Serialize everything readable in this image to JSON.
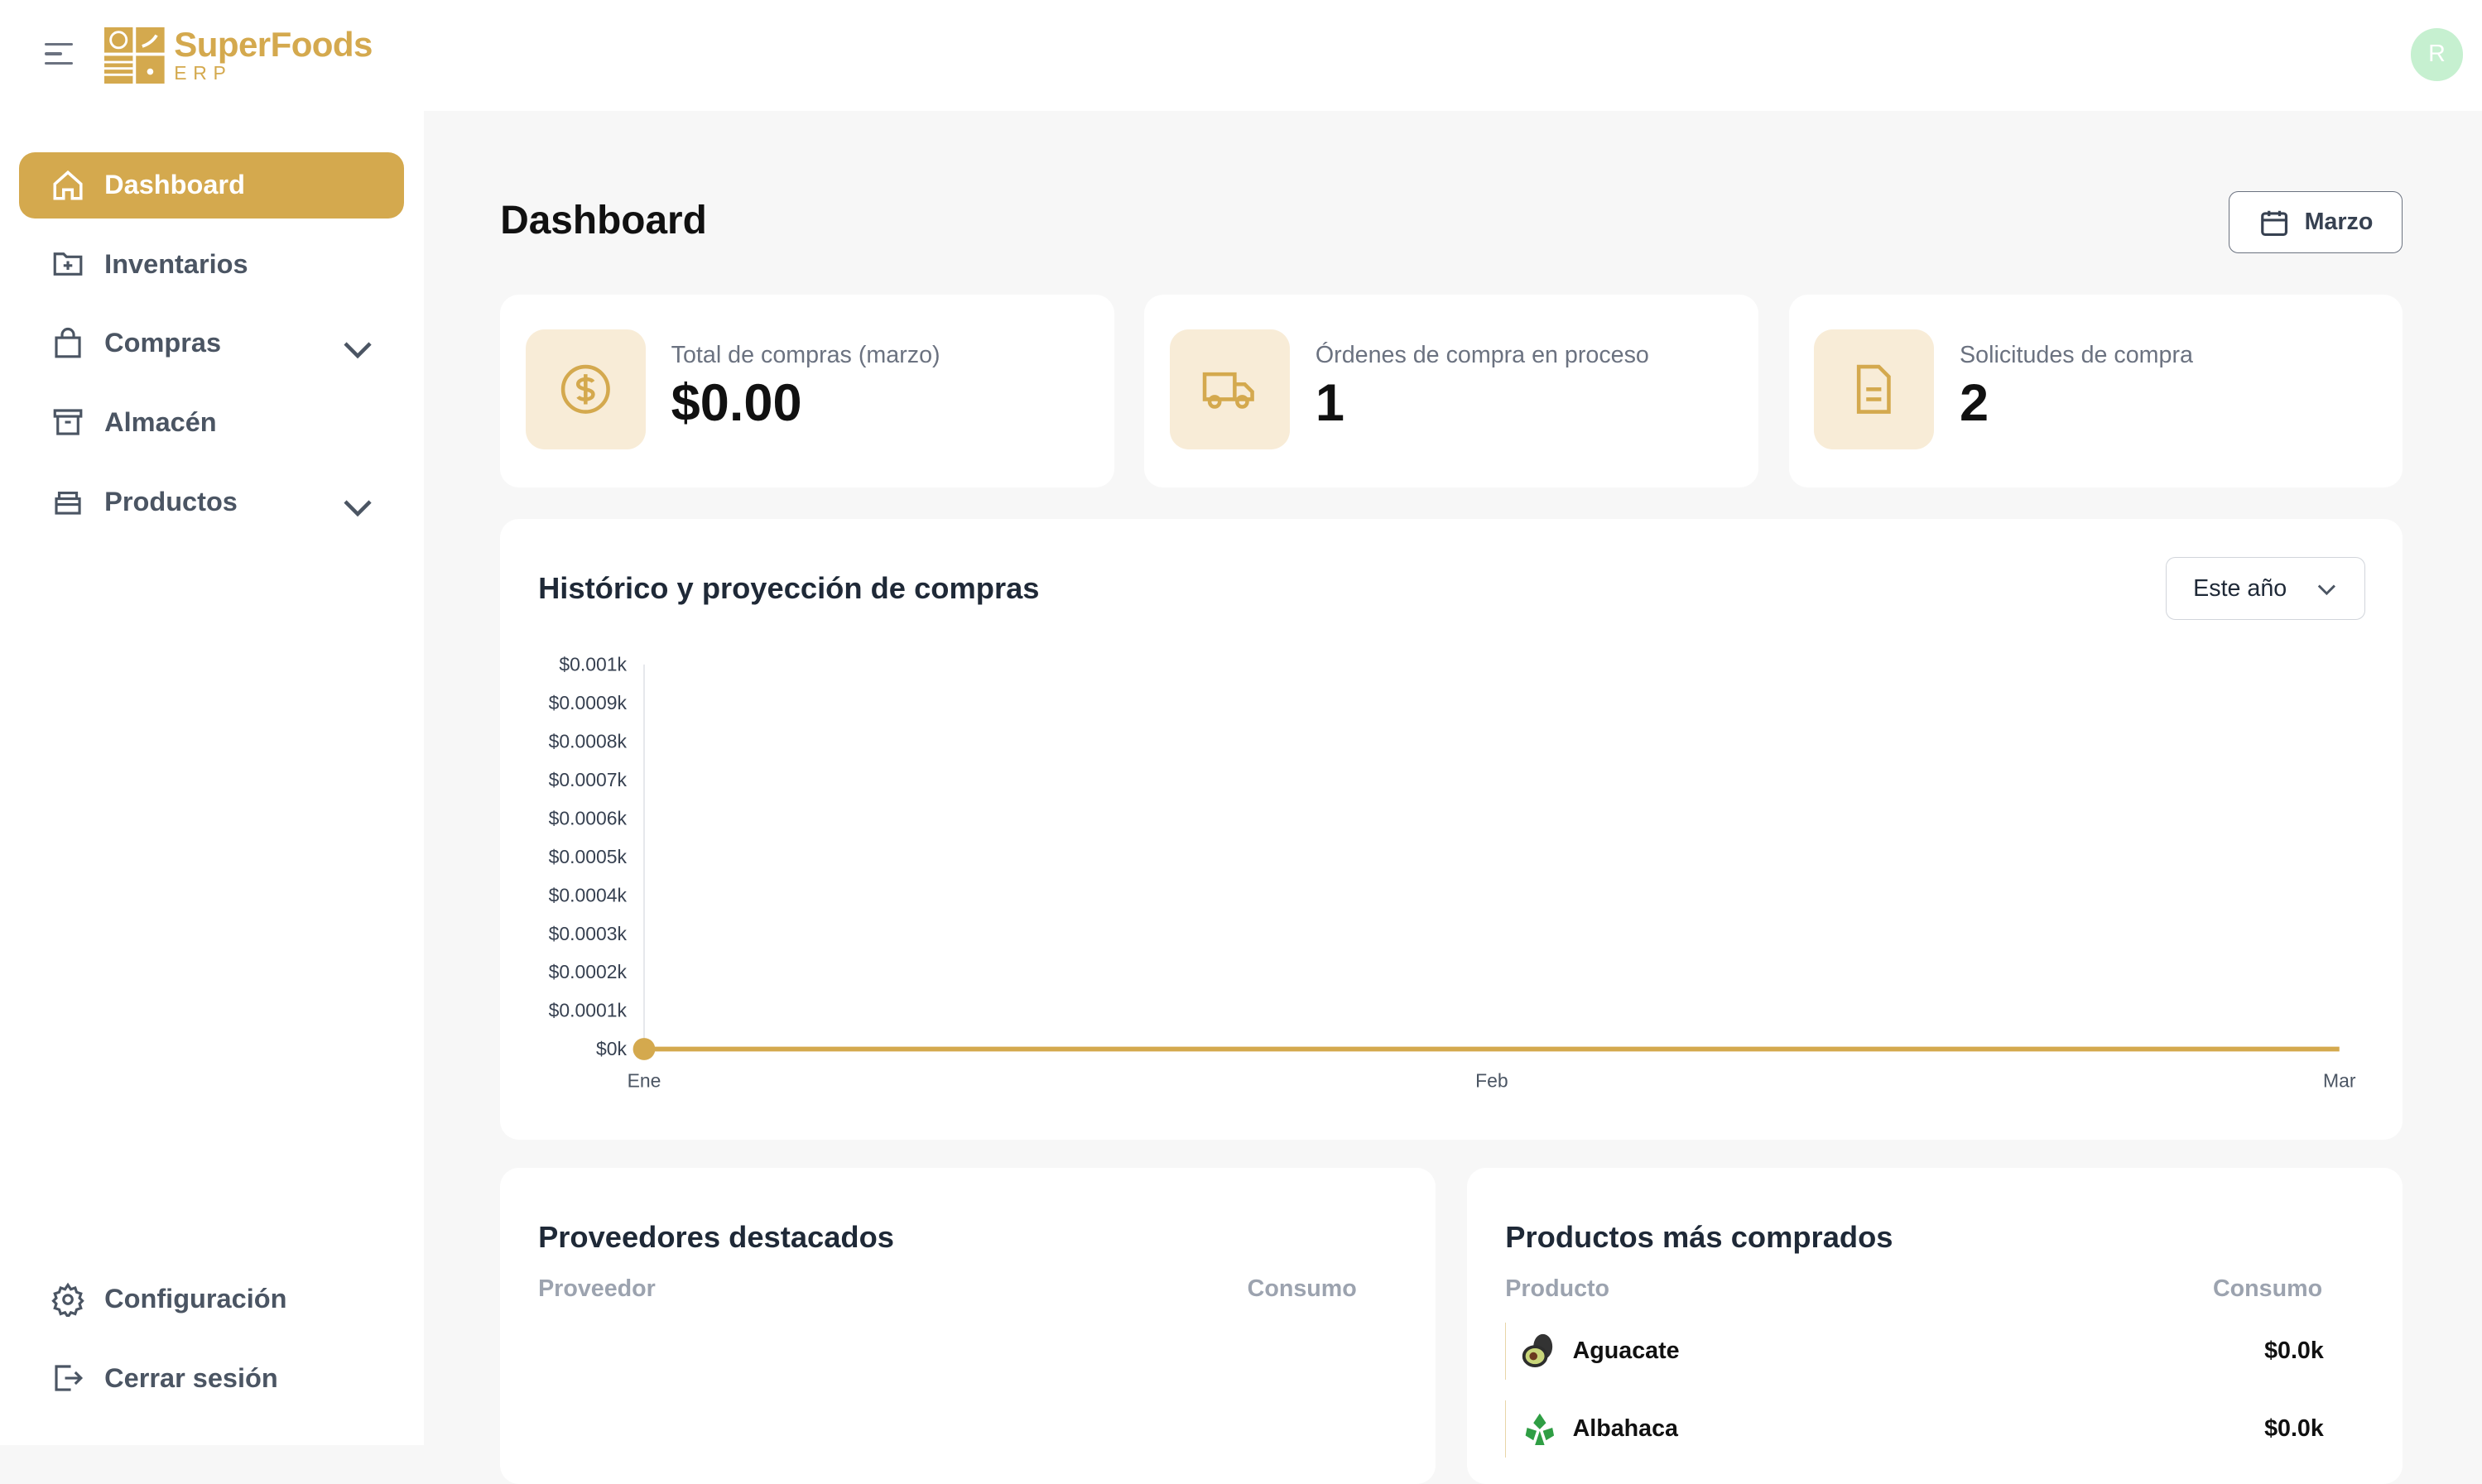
{
  "brand": {
    "name": "SuperFoods",
    "sub": "ERP",
    "accent": "#d4a94e"
  },
  "user": {
    "initial": "R"
  },
  "sidebar": {
    "items": [
      {
        "label": "Dashboard",
        "icon": "home-icon",
        "active": true
      },
      {
        "label": "Inventarios",
        "icon": "folder-plus-icon"
      },
      {
        "label": "Compras",
        "icon": "shopping-bag-icon",
        "expandable": true
      },
      {
        "label": "Almacén",
        "icon": "archive-icon"
      },
      {
        "label": "Productos",
        "icon": "box-icon",
        "expandable": true
      }
    ],
    "bottom": [
      {
        "label": "Configuración",
        "icon": "gear-icon"
      },
      {
        "label": "Cerrar sesión",
        "icon": "logout-icon"
      }
    ]
  },
  "header": {
    "title": "Dashboard",
    "month_button": "Marzo"
  },
  "stats": [
    {
      "label": "Total de compras (marzo)",
      "value": "$0.00",
      "icon": "dollar-icon"
    },
    {
      "label": "Órdenes de compra en proceso",
      "value": "1",
      "icon": "truck-icon"
    },
    {
      "label": "Solicitudes de compra",
      "value": "2",
      "icon": "document-icon"
    }
  ],
  "chart_card": {
    "title": "Histórico y proyección de compras",
    "range": "Este año"
  },
  "chart_data": {
    "type": "line",
    "title": "Histórico y proyección de compras",
    "categories": [
      "Ene",
      "Feb",
      "Mar"
    ],
    "values": [
      0,
      0,
      0
    ],
    "ylim": [
      0,
      0.001
    ],
    "yticks": [
      "$0k",
      "$0.0001k",
      "$0.0002k",
      "$0.0003k",
      "$0.0004k",
      "$0.0005k",
      "$0.0006k",
      "$0.0007k",
      "$0.0008k",
      "$0.0009k",
      "$0.001k"
    ],
    "color": "#d4a94e",
    "grid": false
  },
  "suppliers": {
    "title": "Proveedores destacados",
    "col1": "Proveedor",
    "col2": "Consumo"
  },
  "products": {
    "title": "Productos más comprados",
    "col1": "Producto",
    "col2": "Consumo",
    "rows": [
      {
        "name": "Aguacate",
        "value": "$0.0k",
        "icon": "avocado-icon"
      },
      {
        "name": "Albahaca",
        "value": "$0.0k",
        "icon": "basil-icon"
      }
    ]
  }
}
